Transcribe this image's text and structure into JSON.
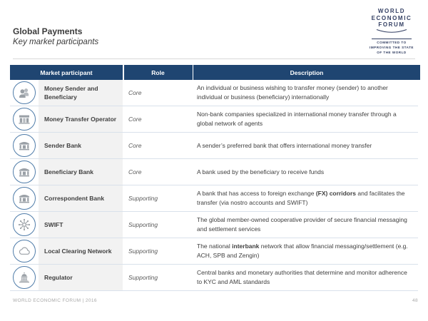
{
  "slide": {
    "title": "Global Payments",
    "subtitle": "Key market participants",
    "footer_left": "WORLD ECONOMIC FORUM | 2016",
    "page_number": "48"
  },
  "logo": {
    "lines": [
      "WORLD",
      "ECONOMIC",
      "FORUM"
    ],
    "tagline_lines": [
      "COMMITTED TO",
      "IMPROVING THE STATE",
      "OF THE WORLD"
    ]
  },
  "colors": {
    "header_bg": "#1F4571",
    "header_text": "#FFFFFF",
    "circle_border": "#4F7CA9",
    "icon_gray": "#9AA0A6",
    "icon_gray_light": "#B6BBC0",
    "name_cell_bg": "#F2F2F2",
    "row_border": "#D9E1EB",
    "title_text": "#3B3B3B",
    "body_text": "#404040",
    "role_text": "#595959",
    "footer_text": "#A8A8A8",
    "logo_navy": "#333F63"
  },
  "table": {
    "headers": [
      "Market participant",
      "Role",
      "Description"
    ],
    "rows": [
      {
        "icon": "people-icon",
        "participant": "Money Sender and Beneficiary",
        "role": "Core",
        "description": [
          {
            "text": "An individual or business wishing to transfer money (sender) to another individual or business (beneficiary) internationally",
            "bold": false
          }
        ]
      },
      {
        "icon": "storefront-icon",
        "participant": "Money Transfer Operator",
        "role": "Core",
        "description": [
          {
            "text": "Non-bank companies specialized in international money transfer through a global network of agents",
            "bold": false
          }
        ]
      },
      {
        "icon": "bank-icon",
        "participant": "Sender Bank",
        "role": "Core",
        "description": [
          {
            "text": "A sender’s preferred bank that offers international money transfer",
            "bold": false
          }
        ]
      },
      {
        "icon": "bank-icon",
        "participant": "Beneficiary Bank",
        "role": "Core",
        "description": [
          {
            "text": "A bank used by the beneficiary to receive funds",
            "bold": false
          }
        ]
      },
      {
        "icon": "bank-icon",
        "participant": "Correspondent Bank",
        "role": "Supporting",
        "description": [
          {
            "text": "A bank that has access to foreign exchange ",
            "bold": false
          },
          {
            "text": "(FX) corridors",
            "bold": true
          },
          {
            "text": " and facilitates the transfer (via nostro accounts and SWIFT)",
            "bold": false
          }
        ]
      },
      {
        "icon": "network-hub-icon",
        "participant": "SWIFT",
        "role": "Supporting",
        "description": [
          {
            "text": "The global member-owned cooperative provider of secure financial messaging and settlement services",
            "bold": false
          }
        ]
      },
      {
        "icon": "cloud-icon",
        "participant": "Local Clearing Network",
        "role": "Supporting",
        "description": [
          {
            "text": "The national ",
            "bold": false
          },
          {
            "text": "interbank",
            "bold": true
          },
          {
            "text": " network that allow financial messaging/settlement (e.g. ACH, SPB and Zengin)",
            "bold": false
          }
        ]
      },
      {
        "icon": "government-building-icon",
        "participant": "Regulator",
        "role": "Supporting",
        "description": [
          {
            "text": "Central banks and monetary authorities that determine and monitor adherence to KYC and AML standards",
            "bold": false
          }
        ]
      }
    ]
  }
}
